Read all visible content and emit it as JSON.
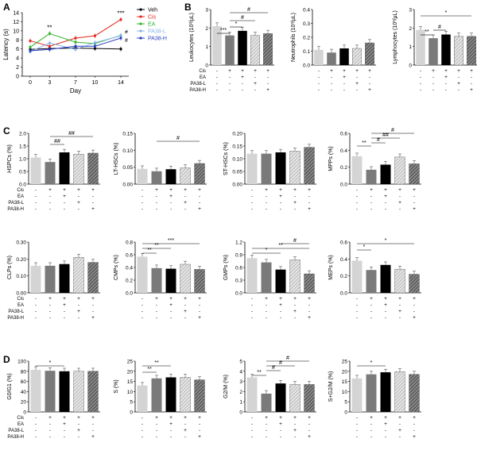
{
  "panel_letters": [
    "A",
    "B",
    "C",
    "D"
  ],
  "treatment_rows": [
    "Cis",
    "EA",
    "PA38-L",
    "PA38-H"
  ],
  "colors": {
    "Veh": "#000000",
    "Cis": "#e3241b",
    "EA": "#2fb52c",
    "PA38-L": "#8ab4e8",
    "PA38-H": "#2a3fc2",
    "bar_fill": [
      "#d4d4d4",
      "#7a7a7a",
      "#000000",
      "#b8b8b8",
      "#555555"
    ],
    "bar_pattern": [
      "none",
      "none",
      "none",
      "hatch-light",
      "hatch-dark"
    ]
  },
  "chart_data": [
    {
      "id": "A",
      "type": "line",
      "xlabel": "Day",
      "ylabel": "Latency (s)",
      "x": [
        0,
        3,
        7,
        10,
        14
      ],
      "xticks": [
        "0",
        "3",
        "7",
        "10",
        "14"
      ],
      "ylim": [
        0,
        14
      ],
      "yticks": [
        0,
        2,
        4,
        6,
        8,
        10,
        12,
        14
      ],
      "series": [
        {
          "name": "Veh",
          "values": [
            5.9,
            6.1,
            6.2,
            6.1,
            6.0
          ]
        },
        {
          "name": "Cis",
          "values": [
            7.8,
            6.6,
            8.4,
            8.9,
            12.5
          ]
        },
        {
          "name": "EA",
          "values": [
            6.4,
            9.4,
            7.5,
            7.2,
            9.0
          ]
        },
        {
          "name": "PA38-L",
          "values": [
            5.4,
            7.3,
            5.9,
            7.4,
            8.9
          ]
        },
        {
          "name": "PA38-H",
          "values": [
            5.6,
            5.9,
            6.6,
            6.6,
            8.4
          ]
        }
      ],
      "annotations": [
        "**",
        "***",
        "#",
        "#"
      ]
    },
    {
      "id": "B1",
      "type": "bar",
      "ylabel": "Leukocytes (10³/μL)",
      "ylim": [
        0,
        3
      ],
      "yticks": [
        "0",
        "1",
        "2",
        "3"
      ],
      "values": [
        2.1,
        1.6,
        1.85,
        1.6,
        1.7
      ],
      "signs": [
        [
          "-",
          "+",
          "+",
          "+",
          "+"
        ],
        [
          "-",
          "-",
          "+",
          "-",
          "-"
        ],
        [
          "-",
          "-",
          "-",
          "+",
          "-"
        ],
        [
          "-",
          "-",
          "-",
          "-",
          "+"
        ]
      ],
      "annotations": [
        "***",
        "*",
        "#",
        "#"
      ]
    },
    {
      "id": "B2",
      "type": "bar",
      "ylabel": "Neutrophils (10³/μL)",
      "ylim": [
        0,
        0.4
      ],
      "yticks": [
        "0.0",
        "0.1",
        "0.2",
        "0.3",
        "0.4"
      ],
      "values": [
        0.11,
        0.09,
        0.12,
        0.12,
        0.16
      ],
      "signs": [
        [
          "-",
          "+",
          "+",
          "+",
          "+"
        ],
        [
          "-",
          "-",
          "+",
          "-",
          "-"
        ],
        [
          "-",
          "-",
          "-",
          "+",
          "-"
        ],
        [
          "-",
          "-",
          "-",
          "-",
          "+"
        ]
      ],
      "annotations": []
    },
    {
      "id": "B3",
      "type": "bar",
      "ylabel": "Lymphocytes (10³/μL)",
      "ylim": [
        0,
        3
      ],
      "yticks": [
        "0",
        "1",
        "2",
        "3"
      ],
      "values": [
        1.9,
        1.45,
        1.65,
        1.55,
        1.55
      ],
      "signs": [
        [
          "-",
          "+",
          "+",
          "+",
          "+"
        ],
        [
          "-",
          "-",
          "+",
          "-",
          "-"
        ],
        [
          "-",
          "-",
          "-",
          "+",
          "-"
        ],
        [
          "-",
          "-",
          "-",
          "-",
          "+"
        ]
      ],
      "annotations": [
        "**",
        "#",
        "*"
      ]
    },
    {
      "id": "C1",
      "type": "bar",
      "ylabel": "HSPCs (%)",
      "ylim": [
        0,
        2
      ],
      "yticks": [
        "0.0",
        "0.5",
        "1.0",
        "1.5",
        "2.0"
      ],
      "values": [
        1.05,
        0.87,
        1.25,
        1.18,
        1.22
      ],
      "signs": [
        [
          "-",
          "+",
          "+",
          "+",
          "+"
        ],
        [
          "-",
          "-",
          "+",
          "-",
          "-"
        ],
        [
          "-",
          "-",
          "-",
          "+",
          "-"
        ],
        [
          "-",
          "-",
          "-",
          "-",
          "+"
        ]
      ],
      "annotations": [
        "##",
        "##"
      ]
    },
    {
      "id": "C2",
      "type": "bar",
      "ylabel": "LT-HSCs (%)",
      "ylim": [
        0,
        0.15
      ],
      "yticks": [
        "0.00",
        "0.05",
        "0.10",
        "0.15"
      ],
      "values": [
        0.045,
        0.038,
        0.044,
        0.048,
        0.061
      ],
      "signs": [
        [
          "-",
          "+",
          "+",
          "+",
          "+"
        ],
        [
          "-",
          "-",
          "+",
          "-",
          "-"
        ],
        [
          "-",
          "-",
          "-",
          "+",
          "-"
        ],
        [
          "-",
          "-",
          "-",
          "-",
          "+"
        ]
      ],
      "annotations": [
        "#"
      ]
    },
    {
      "id": "C3",
      "type": "bar",
      "ylabel": "ST-HSCs (%)",
      "ylim": [
        0,
        0.2
      ],
      "yticks": [
        "0.00",
        "0.05",
        "0.10",
        "0.15",
        "0.20"
      ],
      "values": [
        0.12,
        0.12,
        0.125,
        0.13,
        0.145
      ],
      "signs": [
        [
          "-",
          "+",
          "+",
          "+",
          "+"
        ],
        [
          "-",
          "-",
          "+",
          "-",
          "-"
        ],
        [
          "-",
          "-",
          "-",
          "+",
          "-"
        ],
        [
          "-",
          "-",
          "-",
          "-",
          "+"
        ]
      ],
      "annotations": []
    },
    {
      "id": "C4",
      "type": "bar",
      "ylabel": "MPPs (%)",
      "ylim": [
        0,
        0.6
      ],
      "yticks": [
        "0.0",
        "0.2",
        "0.4",
        "0.6"
      ],
      "values": [
        0.33,
        0.17,
        0.23,
        0.32,
        0.24
      ],
      "signs": [
        [
          "-",
          "+",
          "+",
          "+",
          "+"
        ],
        [
          "-",
          "-",
          "+",
          "-",
          "-"
        ],
        [
          "-",
          "-",
          "-",
          "+",
          "-"
        ],
        [
          "-",
          "-",
          "-",
          "-",
          "+"
        ]
      ],
      "annotations": [
        "**",
        "#",
        "##",
        "#"
      ]
    },
    {
      "id": "C5",
      "type": "bar",
      "ylabel": "CLPs (%)",
      "ylim": [
        0,
        0.3
      ],
      "yticks": [
        "0.00",
        "0.10",
        "0.20",
        "0.30"
      ],
      "values": [
        0.16,
        0.16,
        0.17,
        0.21,
        0.18
      ],
      "signs": [
        [
          "-",
          "+",
          "+",
          "+",
          "+"
        ],
        [
          "-",
          "-",
          "+",
          "-",
          "-"
        ],
        [
          "-",
          "-",
          "-",
          "+",
          "-"
        ],
        [
          "-",
          "-",
          "-",
          "-",
          "+"
        ]
      ],
      "annotations": []
    },
    {
      "id": "C6",
      "type": "bar",
      "ylabel": "CMPs (%)",
      "ylim": [
        0,
        0.8
      ],
      "yticks": [
        "0.0",
        "0.2",
        "0.4",
        "0.6",
        "0.8"
      ],
      "values": [
        0.57,
        0.39,
        0.38,
        0.45,
        0.37
      ],
      "signs": [
        [
          "-",
          "+",
          "+",
          "+",
          "+"
        ],
        [
          "-",
          "-",
          "+",
          "-",
          "-"
        ],
        [
          "-",
          "-",
          "-",
          "+",
          "-"
        ],
        [
          "-",
          "-",
          "-",
          "-",
          "+"
        ]
      ],
      "annotations": [
        "**",
        "**",
        "***"
      ]
    },
    {
      "id": "C7",
      "type": "bar",
      "ylabel": "GMPs (%)",
      "ylim": [
        0,
        1.2
      ],
      "yticks": [
        "0.0",
        "0.3",
        "0.6",
        "0.9",
        "1.2"
      ],
      "values": [
        0.82,
        0.72,
        0.55,
        0.78,
        0.45
      ],
      "signs": [
        [
          "-",
          "+",
          "+",
          "+",
          "+"
        ],
        [
          "-",
          "-",
          "+",
          "-",
          "-"
        ],
        [
          "-",
          "-",
          "-",
          "+",
          "-"
        ],
        [
          "-",
          "-",
          "-",
          "-",
          "+"
        ]
      ],
      "annotations": [
        "*",
        "**",
        "#"
      ]
    },
    {
      "id": "C8",
      "type": "bar",
      "ylabel": "MEPs (%)",
      "ylim": [
        0,
        0.6
      ],
      "yticks": [
        "0.0",
        "0.2",
        "0.4",
        "0.6"
      ],
      "values": [
        0.38,
        0.27,
        0.33,
        0.28,
        0.22
      ],
      "signs": [
        [
          "-",
          "+",
          "+",
          "+",
          "+"
        ],
        [
          "-",
          "-",
          "+",
          "-",
          "-"
        ],
        [
          "-",
          "-",
          "-",
          "+",
          "-"
        ],
        [
          "-",
          "-",
          "-",
          "-",
          "+"
        ]
      ],
      "annotations": [
        "*",
        "*"
      ]
    },
    {
      "id": "D1",
      "type": "bar",
      "ylabel": "G0/G1 (%)",
      "ylim": [
        0,
        100
      ],
      "yticks": [
        "0",
        "20",
        "40",
        "60",
        "80",
        "100"
      ],
      "values": [
        83,
        81,
        80,
        80,
        80
      ],
      "signs": [
        [
          "-",
          "+",
          "+",
          "+",
          "+"
        ],
        [
          "-",
          "-",
          "+",
          "-",
          "-"
        ],
        [
          "-",
          "-",
          "-",
          "+",
          "-"
        ],
        [
          "-",
          "-",
          "-",
          "-",
          "+"
        ]
      ],
      "annotations": [
        "*"
      ]
    },
    {
      "id": "D2",
      "type": "bar",
      "ylabel": "S (%)",
      "ylim": [
        0,
        25
      ],
      "yticks": [
        "0",
        "5",
        "10",
        "15",
        "20",
        "25"
      ],
      "values": [
        13,
        16.5,
        17,
        17,
        15.8
      ],
      "signs": [
        [
          "-",
          "+",
          "+",
          "+",
          "+"
        ],
        [
          "-",
          "-",
          "+",
          "-",
          "-"
        ],
        [
          "-",
          "-",
          "-",
          "+",
          "-"
        ],
        [
          "-",
          "-",
          "-",
          "-",
          "+"
        ]
      ],
      "annotations": [
        "**",
        "**"
      ]
    },
    {
      "id": "D3",
      "type": "bar",
      "ylabel": "G2/M (%)",
      "ylim": [
        0,
        5
      ],
      "yticks": [
        "0",
        "1",
        "2",
        "3",
        "4",
        "5"
      ],
      "values": [
        3.4,
        1.8,
        2.8,
        2.7,
        2.7
      ],
      "signs": [
        [
          "-",
          "+",
          "+",
          "+",
          "+"
        ],
        [
          "-",
          "-",
          "+",
          "-",
          "-"
        ],
        [
          "-",
          "-",
          "-",
          "+",
          "-"
        ],
        [
          "-",
          "-",
          "-",
          "-",
          "+"
        ]
      ],
      "annotations": [
        "**",
        "#",
        "#",
        "#"
      ]
    },
    {
      "id": "D4",
      "type": "bar",
      "ylabel": "S+G2/M (%)",
      "ylim": [
        0,
        25
      ],
      "yticks": [
        "0",
        "5",
        "10",
        "15",
        "20",
        "25"
      ],
      "values": [
        16.5,
        18.5,
        19.5,
        19.8,
        18.5
      ],
      "signs": [
        [
          "-",
          "+",
          "+",
          "+",
          "+"
        ],
        [
          "-",
          "-",
          "+",
          "-",
          "-"
        ],
        [
          "-",
          "-",
          "-",
          "+",
          "-"
        ],
        [
          "-",
          "-",
          "-",
          "-",
          "+"
        ]
      ],
      "annotations": [
        "*"
      ]
    }
  ]
}
